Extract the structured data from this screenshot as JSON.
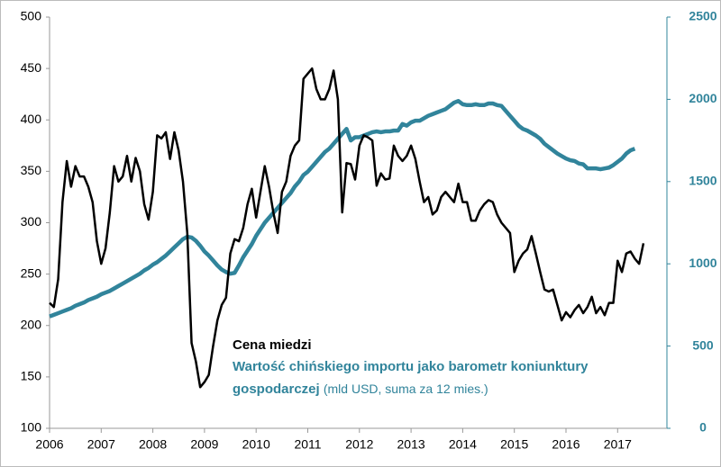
{
  "chart_data": {
    "type": "line",
    "categories": [
      "2006",
      null,
      null,
      null,
      null,
      null,
      null,
      null,
      null,
      null,
      null,
      null,
      "2007",
      null,
      null,
      null,
      null,
      null,
      null,
      null,
      null,
      null,
      null,
      null,
      "2008",
      null,
      null,
      null,
      null,
      null,
      null,
      null,
      null,
      null,
      null,
      null,
      "2009",
      null,
      null,
      null,
      null,
      null,
      null,
      null,
      null,
      null,
      null,
      null,
      "2010",
      null,
      null,
      null,
      null,
      null,
      null,
      null,
      null,
      null,
      null,
      null,
      "2011",
      null,
      null,
      null,
      null,
      null,
      null,
      null,
      null,
      null,
      null,
      null,
      "2012",
      null,
      null,
      null,
      null,
      null,
      null,
      null,
      null,
      null,
      null,
      null,
      "2013",
      null,
      null,
      null,
      null,
      null,
      null,
      null,
      null,
      null,
      null,
      null,
      "2014",
      null,
      null,
      null,
      null,
      null,
      null,
      null,
      null,
      null,
      null,
      null,
      "2015",
      null,
      null,
      null,
      null,
      null,
      null,
      null,
      null,
      null,
      null,
      null,
      "2016",
      null,
      null,
      null,
      null,
      null,
      null,
      null,
      null,
      null,
      null,
      null,
      "2017",
      null,
      null,
      null,
      null,
      null,
      null
    ],
    "series": [
      {
        "name": "Cena miedzi",
        "color": "#000000",
        "axis": "y",
        "values": [
          222,
          218,
          245,
          320,
          360,
          335,
          355,
          345,
          345,
          335,
          320,
          282,
          260,
          275,
          310,
          355,
          340,
          345,
          365,
          340,
          363,
          350,
          318,
          303,
          330,
          385,
          382,
          388,
          362,
          388,
          370,
          340,
          290,
          183,
          165,
          140,
          145,
          152,
          180,
          205,
          220,
          227,
          270,
          284,
          282,
          295,
          318,
          333,
          305,
          330,
          355,
          335,
          310,
          290,
          330,
          340,
          365,
          375,
          380,
          440,
          445,
          450,
          430,
          420,
          420,
          430,
          448,
          420,
          310,
          358,
          357,
          342,
          375,
          385,
          383,
          380,
          336,
          348,
          342,
          343,
          375,
          365,
          360,
          365,
          375,
          362,
          340,
          320,
          325,
          308,
          312,
          325,
          330,
          325,
          320,
          338,
          320,
          320,
          302,
          302,
          312,
          318,
          322,
          320,
          308,
          300,
          295,
          290,
          252,
          263,
          270,
          274,
          287,
          270,
          252,
          235,
          233,
          235,
          220,
          205,
          213,
          208,
          215,
          220,
          212,
          218,
          228,
          212,
          218,
          210,
          222,
          222,
          263,
          252,
          270,
          272,
          265,
          260,
          280
        ]
      },
      {
        "name": "Wartość chińskiego importu jako barometr koniunktury gospodarczej",
        "color": "#31849b",
        "axis": "y2",
        "values": [
          680,
          690,
          700,
          710,
          720,
          730,
          745,
          755,
          765,
          780,
          790,
          800,
          815,
          825,
          835,
          850,
          865,
          880,
          895,
          910,
          925,
          940,
          960,
          975,
          995,
          1010,
          1030,
          1050,
          1075,
          1100,
          1125,
          1150,
          1165,
          1160,
          1140,
          1110,
          1075,
          1050,
          1020,
          990,
          965,
          950,
          940,
          945,
          990,
          1040,
          1080,
          1120,
          1170,
          1210,
          1250,
          1280,
          1310,
          1340,
          1370,
          1400,
          1430,
          1470,
          1500,
          1540,
          1560,
          1590,
          1620,
          1650,
          1680,
          1700,
          1730,
          1760,
          1790,
          1820,
          1750,
          1770,
          1770,
          1780,
          1790,
          1800,
          1805,
          1800,
          1805,
          1805,
          1810,
          1810,
          1850,
          1840,
          1860,
          1870,
          1870,
          1885,
          1900,
          1910,
          1920,
          1930,
          1940,
          1960,
          1980,
          1990,
          1970,
          1965,
          1965,
          1970,
          1965,
          1965,
          1975,
          1975,
          1965,
          1960,
          1930,
          1900,
          1870,
          1840,
          1820,
          1810,
          1795,
          1780,
          1760,
          1730,
          1710,
          1690,
          1670,
          1655,
          1640,
          1630,
          1625,
          1610,
          1605,
          1580,
          1580,
          1580,
          1575,
          1580,
          1585,
          1600,
          1620,
          1640,
          1670,
          1690,
          1700,
          null,
          null
        ]
      }
    ],
    "unit_note": "(mld USD, suma za 12 mies.)",
    "ylim": [
      100,
      500
    ],
    "yticks": [
      100,
      150,
      200,
      250,
      300,
      350,
      400,
      450,
      500
    ],
    "y2lim": [
      0,
      2500
    ],
    "y2ticks": [
      0,
      500,
      1000,
      1500,
      2000,
      2500
    ]
  }
}
